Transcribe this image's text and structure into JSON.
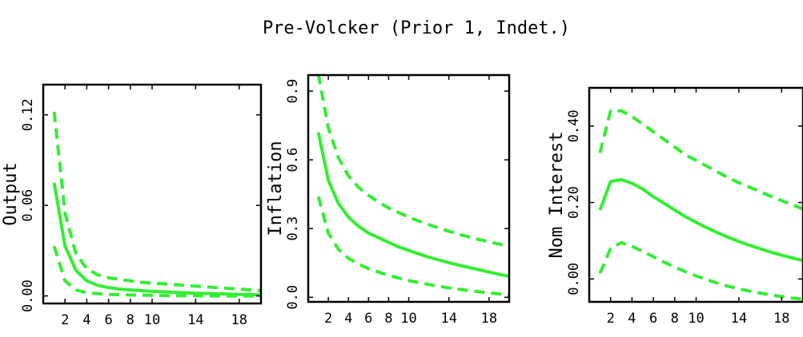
{
  "title": "Pre-Volcker (Prior 1, Indet.)",
  "colors": {
    "line": "#33ee33",
    "axis": "#000000",
    "background": "#ffffff"
  },
  "chart_data": [
    {
      "type": "line",
      "ylabel": "Output",
      "xticks": [
        2,
        4,
        6,
        8,
        10,
        14,
        18
      ],
      "xlim": [
        0,
        20
      ],
      "yticks": [
        0.0,
        0.06,
        0.12
      ],
      "ytick_labels": [
        "0.00",
        "0.06",
        "0.12"
      ],
      "ylim": [
        -0.005,
        0.14
      ],
      "x": [
        1,
        2,
        3,
        4,
        5,
        6,
        7,
        8,
        9,
        10,
        11,
        12,
        13,
        14,
        15,
        16,
        17,
        18,
        19,
        20
      ],
      "series": [
        {
          "style": "dashed",
          "values": [
            0.122,
            0.055,
            0.028,
            0.018,
            0.014,
            0.012,
            0.011,
            0.01,
            0.009,
            0.0085,
            0.008,
            0.0075,
            0.007,
            0.0065,
            0.006,
            0.0055,
            0.005,
            0.0045,
            0.004,
            0.0035
          ]
        },
        {
          "style": "solid",
          "values": [
            0.075,
            0.033,
            0.017,
            0.01,
            0.007,
            0.0055,
            0.0045,
            0.004,
            0.0035,
            0.003,
            0.0027,
            0.0024,
            0.0021,
            0.0018,
            0.0016,
            0.0014,
            0.0012,
            0.001,
            0.0008,
            0.0006
          ]
        },
        {
          "style": "dashed",
          "values": [
            0.033,
            0.01,
            0.004,
            0.002,
            0.0015,
            0.001,
            0.0008,
            0.0006,
            0.0005,
            0.0004,
            0.0003,
            0.0002,
            0.0002,
            0.0001,
            0.0001,
            0.0,
            0.0,
            0.0,
            0.0,
            0.0
          ]
        }
      ]
    },
    {
      "type": "line",
      "ylabel": "Inflation",
      "xticks": [
        2,
        4,
        6,
        8,
        10,
        14,
        18
      ],
      "xlim": [
        0,
        20
      ],
      "yticks": [
        0.0,
        0.3,
        0.6,
        0.9
      ],
      "ytick_labels": [
        "0.0",
        "0.3",
        "0.6",
        "0.9"
      ],
      "ylim": [
        -0.02,
        0.97
      ],
      "x": [
        1,
        2,
        3,
        4,
        5,
        6,
        7,
        8,
        9,
        10,
        11,
        12,
        13,
        14,
        15,
        16,
        17,
        18,
        19,
        20
      ],
      "series": [
        {
          "style": "dashed",
          "values": [
            0.975,
            0.74,
            0.61,
            0.53,
            0.48,
            0.445,
            0.415,
            0.39,
            0.37,
            0.35,
            0.333,
            0.317,
            0.302,
            0.288,
            0.275,
            0.263,
            0.252,
            0.242,
            0.232,
            0.222
          ]
        },
        {
          "style": "solid",
          "values": [
            0.72,
            0.51,
            0.41,
            0.35,
            0.31,
            0.28,
            0.26,
            0.24,
            0.22,
            0.205,
            0.19,
            0.175,
            0.163,
            0.151,
            0.14,
            0.13,
            0.12,
            0.11,
            0.1,
            0.092
          ]
        },
        {
          "style": "dashed",
          "values": [
            0.44,
            0.28,
            0.21,
            0.17,
            0.145,
            0.125,
            0.11,
            0.096,
            0.084,
            0.073,
            0.064,
            0.056,
            0.048,
            0.041,
            0.035,
            0.029,
            0.024,
            0.019,
            0.015,
            0.011
          ]
        }
      ]
    },
    {
      "type": "line",
      "ylabel": "Nom Interest",
      "xticks": [
        2,
        4,
        6,
        8,
        10,
        14,
        18
      ],
      "xlim": [
        0,
        20
      ],
      "yticks": [
        0.0,
        0.2,
        0.4
      ],
      "ytick_labels": [
        "0.00",
        "0.20",
        "0.40"
      ],
      "ylim": [
        -0.06,
        0.5
      ],
      "x": [
        1,
        2,
        3,
        4,
        5,
        6,
        7,
        8,
        9,
        10,
        11,
        12,
        13,
        14,
        15,
        16,
        17,
        18,
        19,
        20
      ],
      "series": [
        {
          "style": "dashed",
          "values": [
            0.33,
            0.44,
            0.44,
            0.425,
            0.405,
            0.385,
            0.365,
            0.345,
            0.325,
            0.31,
            0.295,
            0.28,
            0.265,
            0.252,
            0.24,
            0.228,
            0.216,
            0.205,
            0.194,
            0.183
          ]
        },
        {
          "style": "solid",
          "values": [
            0.18,
            0.255,
            0.26,
            0.25,
            0.235,
            0.215,
            0.198,
            0.18,
            0.163,
            0.148,
            0.134,
            0.121,
            0.109,
            0.098,
            0.088,
            0.079,
            0.07,
            0.062,
            0.055,
            0.048
          ]
        },
        {
          "style": "dashed",
          "values": [
            0.015,
            0.08,
            0.095,
            0.085,
            0.072,
            0.058,
            0.044,
            0.031,
            0.019,
            0.008,
            -0.002,
            -0.011,
            -0.019,
            -0.026,
            -0.032,
            -0.037,
            -0.042,
            -0.046,
            -0.05,
            -0.053
          ]
        }
      ]
    }
  ]
}
